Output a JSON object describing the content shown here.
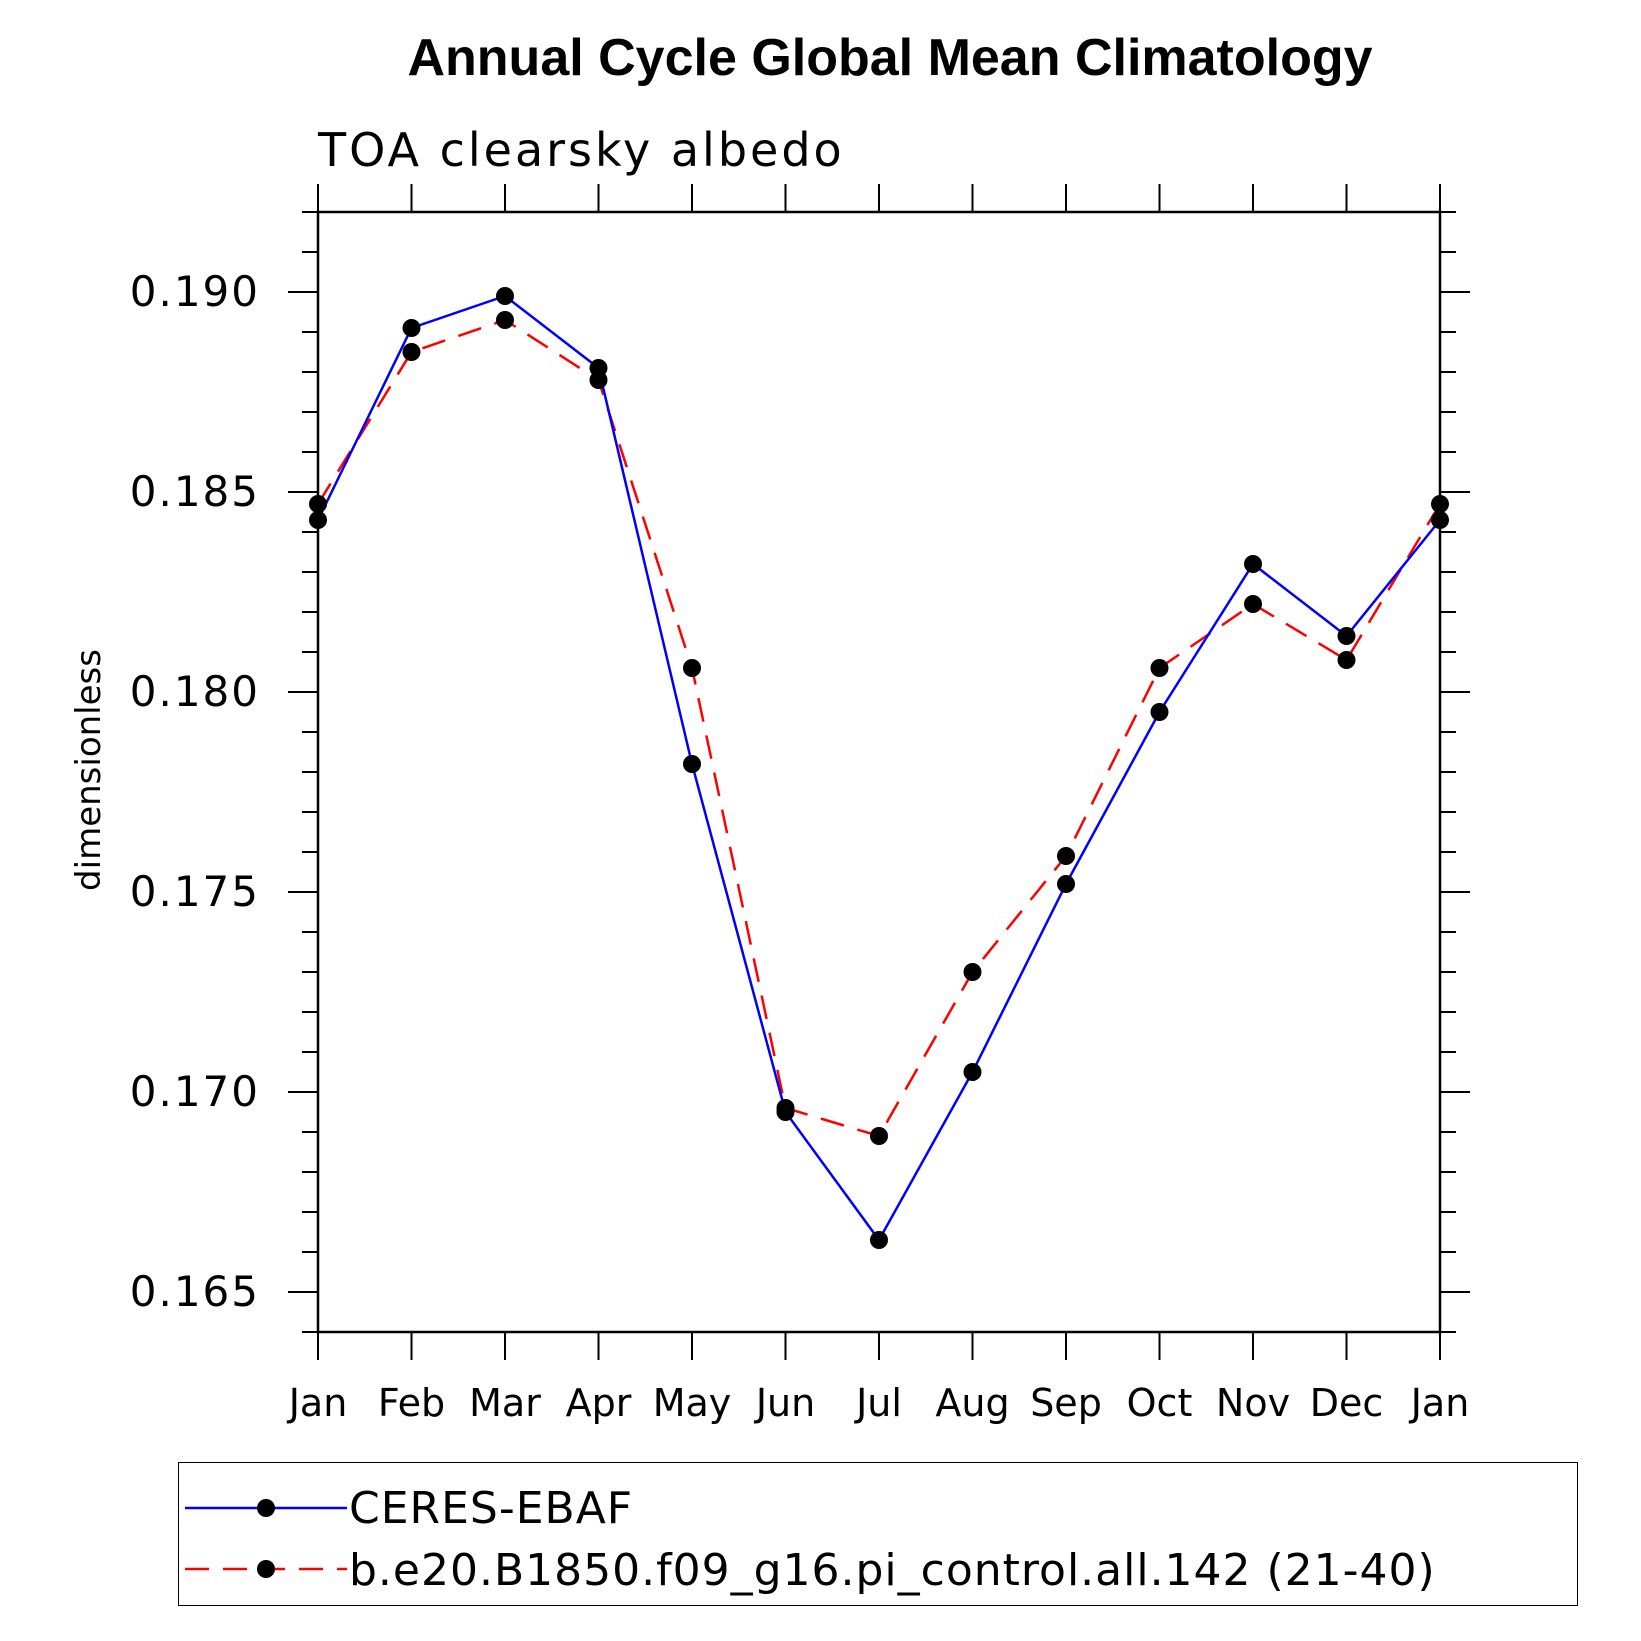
{
  "chart_data": {
    "type": "line",
    "title": "Annual Cycle Global Mean Climatology",
    "subtitle": "TOA clearsky albedo",
    "xlabel": "",
    "ylabel": "dimensionless",
    "categories": [
      "Jan",
      "Feb",
      "Mar",
      "Apr",
      "May",
      "Jun",
      "Jul",
      "Aug",
      "Sep",
      "Oct",
      "Nov",
      "Dec",
      "Jan"
    ],
    "ylim": [
      0.164,
      0.192
    ],
    "yticks": [
      "0.165",
      "0.170",
      "0.175",
      "0.180",
      "0.185",
      "0.190"
    ],
    "legend_position": "bottom",
    "series": [
      {
        "name": "CERES-EBAF",
        "color": "#0000ff",
        "style": "solid",
        "marker": "filled-circle",
        "values": [
          0.1843,
          0.1891,
          0.1899,
          0.1881,
          0.1782,
          0.1695,
          0.1663,
          0.1705,
          0.1752,
          0.1795,
          0.1832,
          0.1814,
          0.1843
        ]
      },
      {
        "name": "b.e20.B1850.f09_g16.pi_control.all.142 (21-40)",
        "color": "#ff0000",
        "style": "dashed",
        "marker": "filled-circle",
        "values": [
          0.1847,
          0.1885,
          0.1893,
          0.1878,
          0.1806,
          0.1696,
          0.1689,
          0.173,
          0.1759,
          0.1806,
          0.1822,
          0.1808,
          0.1847
        ]
      }
    ]
  }
}
